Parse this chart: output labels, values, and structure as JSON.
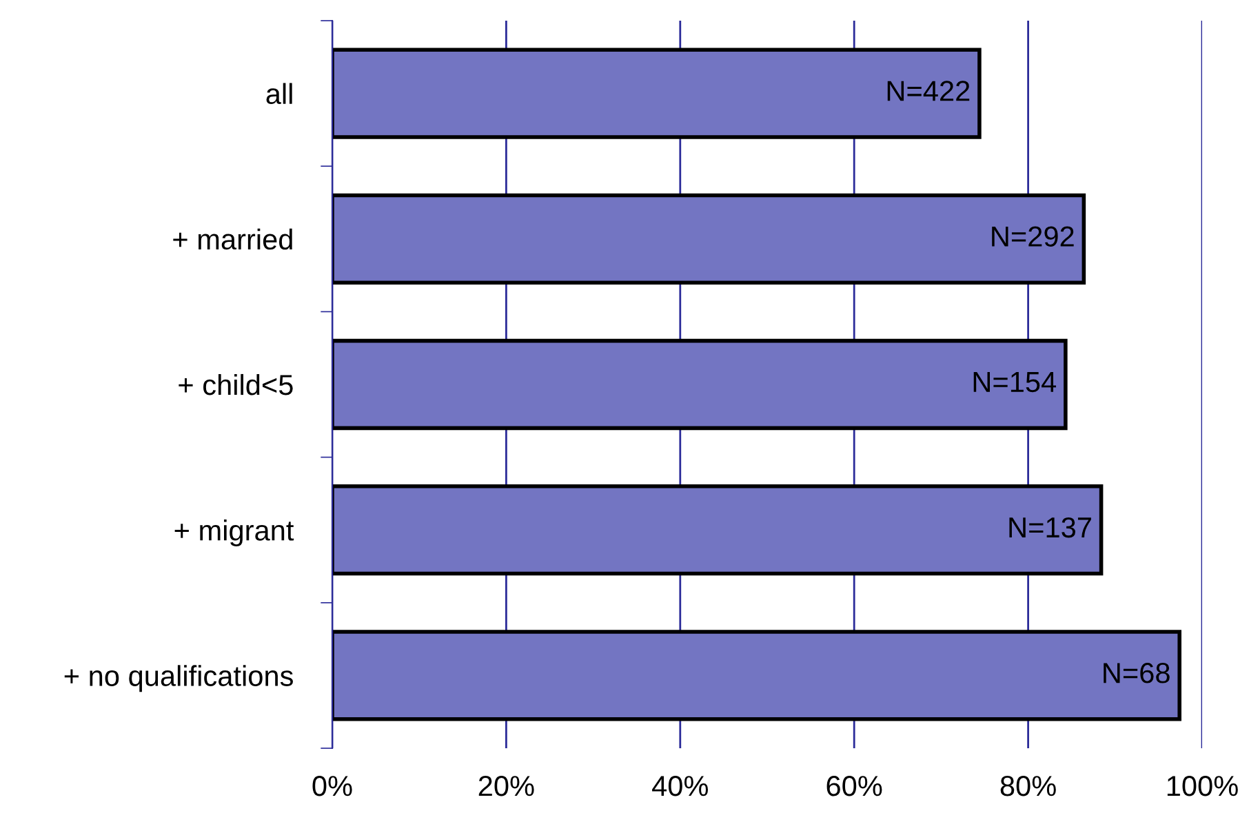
{
  "chart_data": {
    "type": "bar",
    "orientation": "horizontal",
    "categories": [
      "all",
      "+ married",
      "+ child<5",
      "+ migrant",
      "+ no qualifications"
    ],
    "values": [
      74.4,
      86.4,
      84.3,
      88.4,
      97.4
    ],
    "annotations": [
      {
        "text": "N=422",
        "x": 74.4,
        "y": "all"
      },
      {
        "text": "N=292",
        "x": 86.4,
        "y": "+ married"
      },
      {
        "text": "N=154",
        "x": 84.3,
        "y": "+ child<5"
      },
      {
        "text": "N=137",
        "x": 88.4,
        "y": "+ migrant"
      },
      {
        "text": "N=68",
        "x": 97.4,
        "y": "+ no qualifications"
      }
    ],
    "color": "#7375c2",
    "xlim": [
      0,
      100
    ],
    "xticks": [
      {
        "value": 0,
        "label": "0%"
      },
      {
        "value": 20,
        "label": "20%"
      },
      {
        "value": 40,
        "label": "40%"
      },
      {
        "value": 60,
        "label": "60%"
      },
      {
        "value": 80,
        "label": "80%"
      },
      {
        "value": 100,
        "label": "100%"
      }
    ],
    "grid": "x",
    "legend": false
  }
}
